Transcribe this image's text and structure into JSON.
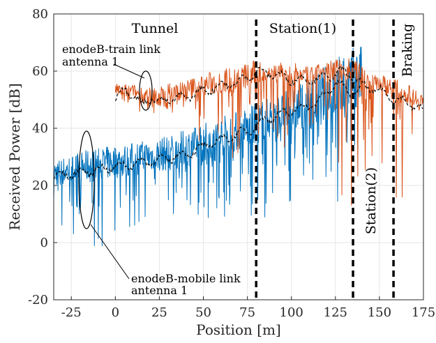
{
  "chart_data": {
    "type": "line",
    "title": "",
    "xlabel": "Position [m]",
    "ylabel": "Received Power [dB]",
    "xlim": [
      -35,
      175
    ],
    "ylim": [
      -20,
      80
    ],
    "xticks": [
      -25,
      0,
      25,
      50,
      75,
      100,
      125,
      150,
      175
    ],
    "yticks": [
      -20,
      0,
      20,
      40,
      60,
      80
    ],
    "grid": true,
    "colors": {
      "mobile": "#0072BD",
      "train": "#D95319",
      "average": "#000000",
      "markers": "#000000"
    },
    "series": [
      {
        "key": "mobile_link",
        "style": "noisy",
        "x": [
          -35,
          -25,
          -15,
          -5,
          5,
          15,
          25,
          35,
          45,
          55,
          65,
          75,
          85,
          95,
          105,
          115,
          125,
          135,
          140
        ],
        "mean": [
          23,
          24,
          25,
          26,
          27,
          28,
          29,
          30,
          32,
          34,
          36,
          38,
          41,
          43,
          45,
          47,
          50,
          54,
          55
        ],
        "upper": [
          30,
          32,
          34,
          35,
          36,
          37,
          38,
          40,
          42,
          45,
          47,
          49,
          52,
          54,
          58,
          62,
          68,
          71,
          72
        ],
        "lower": [
          5,
          0,
          -5,
          0,
          5,
          5,
          10,
          5,
          5,
          5,
          10,
          5,
          5,
          10,
          15,
          20,
          10,
          25,
          30
        ]
      },
      {
        "key": "train_link",
        "style": "noisy",
        "x": [
          0,
          10,
          20,
          30,
          40,
          50,
          60,
          70,
          80,
          90,
          100,
          110,
          120,
          130,
          140,
          150,
          160,
          170,
          175
        ],
        "mean": [
          53,
          52,
          50,
          50,
          52,
          54,
          55,
          56,
          58,
          59,
          58,
          58,
          59,
          60,
          58,
          55,
          52,
          50,
          48
        ],
        "upper": [
          56,
          56,
          55,
          57,
          58,
          60,
          62,
          63,
          65,
          64,
          64,
          62,
          64,
          67,
          63,
          60,
          58,
          55,
          55
        ],
        "lower": [
          48,
          43,
          45,
          45,
          45,
          30,
          35,
          25,
          35,
          30,
          35,
          35,
          25,
          5,
          20,
          15,
          15,
          15,
          25
        ]
      },
      {
        "key": "mobile_avg",
        "style": "dashed",
        "x": [
          -35,
          -25,
          -15,
          -5,
          5,
          15,
          25,
          35,
          45,
          55,
          65,
          75,
          85,
          95,
          105,
          115,
          125,
          135,
          140
        ],
        "y": [
          23,
          24,
          25,
          26,
          27,
          28,
          29,
          30,
          32,
          35,
          37,
          39,
          43,
          45,
          47,
          49,
          56,
          52,
          54
        ]
      },
      {
        "key": "train_avg",
        "style": "dashed",
        "x": [
          0,
          5,
          10,
          15,
          20,
          25,
          30,
          40,
          50,
          60,
          70,
          80,
          90,
          100,
          110,
          120,
          130,
          140,
          150,
          160,
          170,
          175
        ],
        "y": [
          50,
          54,
          52,
          48,
          51,
          49,
          50,
          51,
          53,
          55,
          56,
          60,
          59,
          57,
          57,
          58,
          60,
          55,
          53,
          50,
          48,
          46
        ]
      }
    ],
    "vertical_markers": [
      80,
      135,
      158
    ],
    "annotations": {
      "tunnel": "Tunnel",
      "station1": "Station(1)",
      "station2": "Station(2)",
      "braking": "Braking",
      "train_link_line1": "enodeB-train link",
      "train_link_line2": "antenna 1",
      "mobile_link_line1": "enodeB-mobile link",
      "mobile_link_line2": "antenna 1"
    }
  }
}
